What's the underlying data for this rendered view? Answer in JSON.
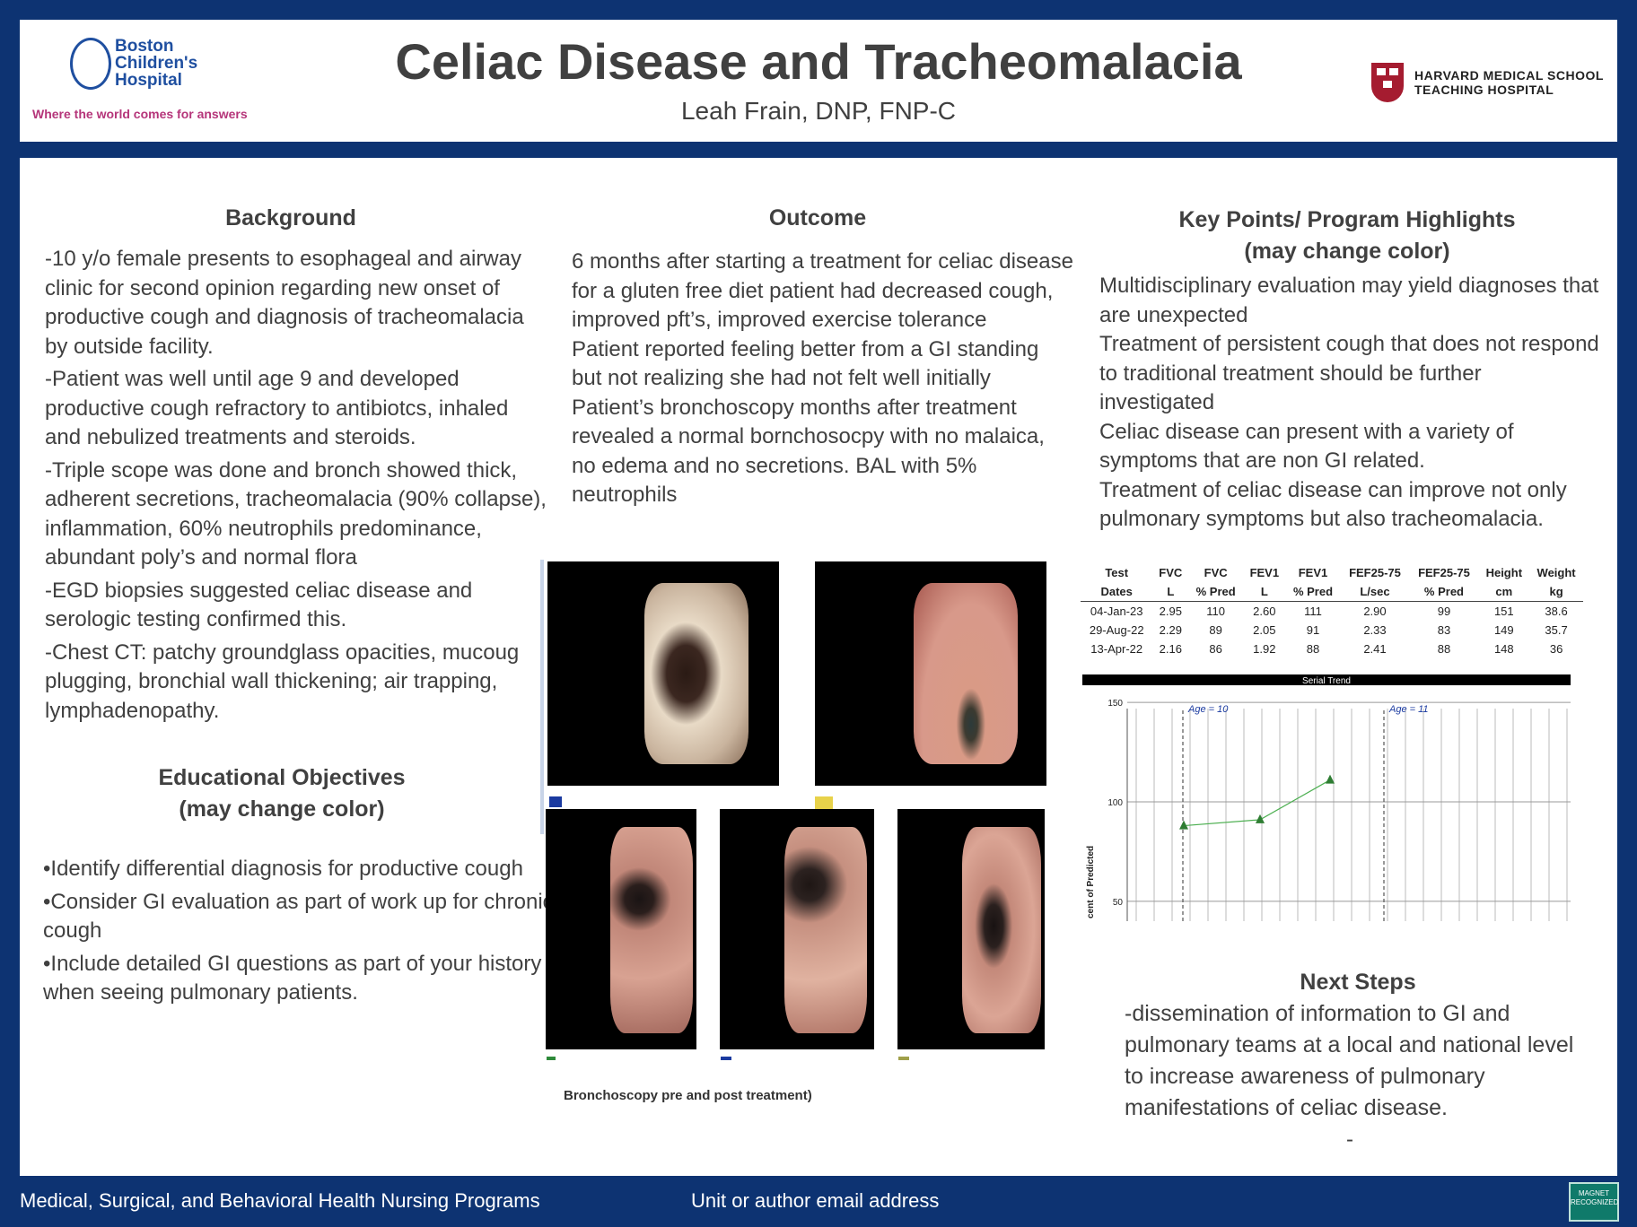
{
  "header": {
    "title": "Celiac Disease and Tracheomalacia",
    "author": "Leah Frain, DNP, FNP-C",
    "left_logo_name_1": "Boston",
    "left_logo_name_2": "Children's",
    "left_logo_name_3": "Hospital",
    "left_logo_tagline": "Where the world comes for answers",
    "right_logo_line_1": "HARVARD MEDICAL SCHOOL",
    "right_logo_line_2": "TEACHING HOSPITAL"
  },
  "background": {
    "heading": "Background",
    "paragraphs": [
      "-10 y/o female presents to esophageal and airway clinic for second opinion regarding new onset of productive cough and diagnosis of tracheomalacia by outside facility.",
      "-Patient was well until age 9 and developed productive cough refractory to antibiotcs, inhaled and nebulized treatments and steroids.",
      "-Triple scope was done and bronch showed thick, adherent secretions, tracheomalacia (90% collapse),  inflammation, 60% neutrophils predominance, abundant poly’s and normal flora",
      "-EGD biopsies suggested celiac disease and serologic testing confirmed this.",
      "-Chest CT: patchy groundglass opacities, mucoug plugging, bronchial wall thickening; air trapping, lymphadenopathy."
    ]
  },
  "objectives": {
    "heading_1": "Educational Objectives",
    "heading_2": "(may change color)",
    "items": [
      "•Identify differential diagnosis for productive cough",
      "•Consider GI evaluation as part of work up for chronic cough",
      "•Include detailed GI questions as part of your history when seeing pulmonary patients."
    ]
  },
  "outcome": {
    "heading": "Outcome",
    "paragraphs": [
      "6 months after starting a treatment for celiac disease for a gluten free diet patient had decreased cough, improved pft’s, improved exercise tolerance",
      "Patient reported feeling better from a GI standing but not realizing she had not felt well initially",
      "Patient’s bronchoscopy  months after treatment revealed a normal bornchosocpy with no malaica, no edema and no secretions.  BAL with 5% neutrophils"
    ]
  },
  "figure_caption": "Bronchoscopy pre and post treatment)",
  "key_points": {
    "heading_1": "Key Points/ Program Highlights",
    "heading_2": "(may change color)",
    "paragraphs": [
      "Multidisciplinary evaluation may yield diagnoses that are unexpected",
      "Treatment of persistent cough that does not respond to traditional treatment should be further investigated",
      "Celiac disease can present with a variety of symptoms that are non GI related.",
      "Treatment of celiac disease can improve not only pulmonary symptoms but also tracheomalacia."
    ]
  },
  "pft_table": {
    "headers_top": [
      "Test",
      "FVC",
      "FVC",
      "FEV1",
      "FEV1",
      "FEF25-75",
      "FEF25-75",
      "Height",
      "Weight"
    ],
    "headers_bottom": [
      "Dates",
      "L",
      "% Pred",
      "L",
      "% Pred",
      "L/sec",
      "% Pred",
      "cm",
      "kg"
    ],
    "rows": [
      [
        "04-Jan-23",
        "2.95",
        "110",
        "2.60",
        "111",
        "2.90",
        "99",
        "151",
        "38.6"
      ],
      [
        "29-Aug-22",
        "2.29",
        "89",
        "2.05",
        "91",
        "2.33",
        "83",
        "149",
        "35.7"
      ],
      [
        "13-Apr-22",
        "2.16",
        "86",
        "1.92",
        "88",
        "2.41",
        "88",
        "148",
        "36"
      ]
    ]
  },
  "chart_data": {
    "type": "line",
    "title": "Serial Trend",
    "ylabel": "cent of Predicted",
    "ylim": [
      40,
      155
    ],
    "yticks": [
      50,
      100,
      150
    ],
    "annotations": [
      "Age = 10",
      "Age = 11"
    ],
    "series": [
      {
        "values": [
          88,
          91,
          111
        ]
      }
    ],
    "grid": true
  },
  "next_steps": {
    "heading": "Next Steps",
    "text": "-dissemination of information to GI and pulmonary teams at a local and national level to increase awareness of pulmonary manifestations of celiac disease.",
    "dash": "-"
  },
  "footer": {
    "left": "Medical, Surgical, and Behavioral Health Nursing Programs",
    "middle": "Unit or author email address",
    "badge": "MAGNET RECOGNIZED"
  },
  "colors": {
    "frame": "#0d3372",
    "accent_pink": "#b5357a",
    "harvard_red": "#a51c30",
    "chart_line": "#2e7d32"
  }
}
